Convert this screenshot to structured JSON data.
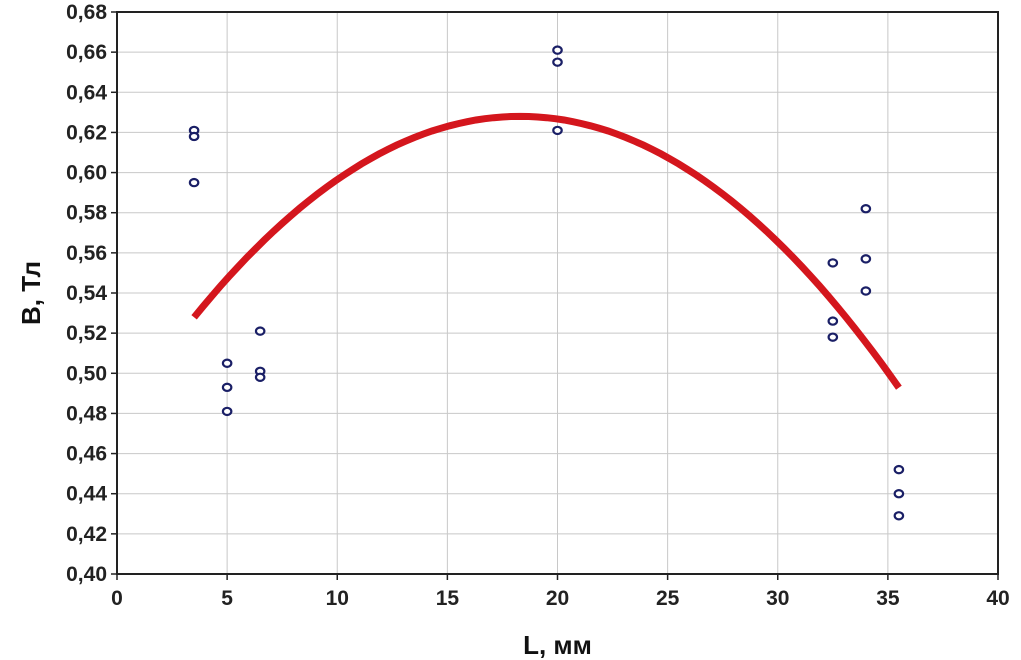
{
  "chart_data": {
    "type": "scatter",
    "xlabel": "L, мм",
    "ylabel": "B, Тл",
    "xlim": [
      0,
      40
    ],
    "ylim": [
      0.4,
      0.68
    ],
    "x_ticks": [
      0,
      5,
      10,
      15,
      20,
      25,
      30,
      35,
      40
    ],
    "x_tick_labels": [
      "0",
      "5",
      "10",
      "15",
      "20",
      "25",
      "30",
      "35",
      "40"
    ],
    "y_ticks": [
      0.4,
      0.42,
      0.44,
      0.46,
      0.48,
      0.5,
      0.52,
      0.54,
      0.56,
      0.58,
      0.6,
      0.62,
      0.64,
      0.66,
      0.68
    ],
    "y_tick_labels": [
      "0,40",
      "0,42",
      "0,44",
      "0,46",
      "0,48",
      "0,50",
      "0,52",
      "0,54",
      "0,56",
      "0,58",
      "0,60",
      "0,62",
      "0,64",
      "0,66",
      "0,68"
    ],
    "grid": true,
    "points": [
      {
        "x": 3.5,
        "y": 0.621
      },
      {
        "x": 3.5,
        "y": 0.618
      },
      {
        "x": 3.5,
        "y": 0.595
      },
      {
        "x": 5.0,
        "y": 0.505
      },
      {
        "x": 5.0,
        "y": 0.493
      },
      {
        "x": 5.0,
        "y": 0.481
      },
      {
        "x": 6.5,
        "y": 0.521
      },
      {
        "x": 6.5,
        "y": 0.501
      },
      {
        "x": 6.5,
        "y": 0.498
      },
      {
        "x": 20.0,
        "y": 0.661
      },
      {
        "x": 20.0,
        "y": 0.655
      },
      {
        "x": 20.0,
        "y": 0.621
      },
      {
        "x": 32.5,
        "y": 0.555
      },
      {
        "x": 32.5,
        "y": 0.526
      },
      {
        "x": 32.5,
        "y": 0.518
      },
      {
        "x": 34.0,
        "y": 0.582
      },
      {
        "x": 34.0,
        "y": 0.557
      },
      {
        "x": 34.0,
        "y": 0.541
      },
      {
        "x": 35.5,
        "y": 0.452
      },
      {
        "x": 35.5,
        "y": 0.44
      },
      {
        "x": 35.5,
        "y": 0.429
      }
    ],
    "fit_curve": {
      "type": "quadratic",
      "x_range": [
        3.5,
        35.5
      ],
      "vertex": {
        "x": 18.3,
        "y": 0.628
      },
      "a": -0.000457
    },
    "colors": {
      "point_stroke": "#1a1f66",
      "fit": "#d4161d",
      "grid": "#c8c8c8",
      "frame": "#222222"
    }
  }
}
